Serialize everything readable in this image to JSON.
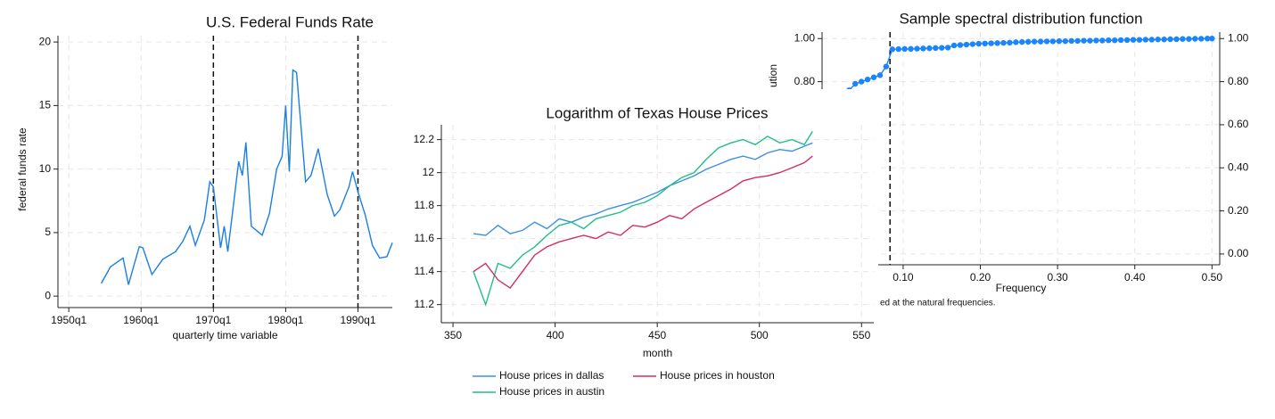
{
  "chart_data": [
    {
      "type": "line",
      "title": "U.S. Federal Funds Rate",
      "xlabel": "quarterly time variable",
      "ylabel": "federal funds rate",
      "x": [
        "1954q3",
        "1955q4",
        "1957q3",
        "1958q2",
        "1959q4",
        "1960q2",
        "1961q3",
        "1963q1",
        "1964q4",
        "1965q4",
        "1966q4",
        "1967q3",
        "1968q4",
        "1969q3",
        "1970q1",
        "1971q1",
        "1971q3",
        "1972q1",
        "1973q3",
        "1974q1",
        "1974q3",
        "1975q2",
        "1976q4",
        "1977q4",
        "1978q4",
        "1979q3",
        "1980q1",
        "1980q3",
        "1981q1",
        "1981q3",
        "1982q1",
        "1982q4",
        "1983q3",
        "1984q3",
        "1985q4",
        "1986q4",
        "1987q3",
        "1988q4",
        "1989q2",
        "1990q1",
        "1991q1",
        "1992q1",
        "1993q1",
        "1994q1",
        "1994q4"
      ],
      "series": [
        {
          "color": "#1a7fe0",
          "values": [
            1.0,
            2.3,
            3.0,
            0.9,
            3.9,
            3.8,
            1.7,
            2.9,
            3.5,
            4.3,
            5.5,
            4.0,
            6.0,
            9.0,
            8.6,
            3.8,
            5.5,
            3.5,
            10.6,
            9.5,
            12.1,
            5.5,
            4.8,
            6.5,
            10.0,
            11.0,
            15.0,
            9.8,
            17.8,
            17.6,
            14.2,
            9.0,
            9.5,
            11.6,
            8.0,
            6.3,
            6.8,
            8.6,
            9.8,
            8.2,
            6.4,
            4.0,
            3.0,
            3.1,
            4.2
          ]
        }
      ],
      "xlim": [
        "1948q3",
        "1994q4"
      ],
      "xticks": [
        "1950q1",
        "1960q1",
        "1970q1",
        "1980q1",
        "1990q1"
      ],
      "ylim": [
        -0.9,
        20.5
      ],
      "yticks": [
        0,
        5,
        10,
        15,
        20
      ],
      "grid": true,
      "xlines": [
        "1970q1",
        "1990q1"
      ]
    },
    {
      "type": "line",
      "title": "Logarithm of Texas House Prices",
      "xlabel": "month",
      "x": [
        360,
        366,
        372,
        378,
        384,
        390,
        396,
        402,
        408,
        414,
        420,
        426,
        432,
        438,
        444,
        450,
        456,
        462,
        468,
        474,
        480,
        486,
        492,
        498,
        504,
        510,
        516,
        522,
        526
      ],
      "series": [
        {
          "name": "House prices in dallas",
          "color": "#3d8fe6",
          "values": [
            11.63,
            11.62,
            11.68,
            11.63,
            11.65,
            11.7,
            11.66,
            11.72,
            11.7,
            11.73,
            11.75,
            11.78,
            11.8,
            11.82,
            11.85,
            11.88,
            11.92,
            11.95,
            11.98,
            12.02,
            12.05,
            12.08,
            12.1,
            12.08,
            12.12,
            12.14,
            12.13,
            12.16,
            12.18
          ]
        },
        {
          "name": "House prices in austin",
          "color": "#1fbf8a",
          "values": [
            11.4,
            11.2,
            11.45,
            11.42,
            11.5,
            11.55,
            11.62,
            11.68,
            11.7,
            11.66,
            11.72,
            11.74,
            11.76,
            11.8,
            11.82,
            11.86,
            11.92,
            11.97,
            12.0,
            12.08,
            12.15,
            12.18,
            12.2,
            12.17,
            12.22,
            12.18,
            12.2,
            12.17,
            12.25
          ]
        },
        {
          "name": "House prices in houston",
          "color": "#d42d5e",
          "values": [
            11.4,
            11.45,
            11.35,
            11.3,
            11.4,
            11.5,
            11.55,
            11.58,
            11.6,
            11.62,
            11.6,
            11.64,
            11.62,
            11.68,
            11.67,
            11.7,
            11.74,
            11.72,
            11.78,
            11.82,
            11.86,
            11.9,
            11.95,
            11.97,
            11.98,
            12.0,
            12.03,
            12.06,
            12.1
          ]
        }
      ],
      "xlim": [
        344.3,
        556
      ],
      "xticks": [
        350,
        400,
        450,
        500,
        550
      ],
      "ylim": [
        11.09,
        12.29
      ],
      "yticks": [
        11.2,
        11.4,
        11.6,
        11.8,
        12,
        12.2
      ],
      "grid": true,
      "legend": "bottom"
    },
    {
      "type": "line",
      "title": "Sample spectral distribution function",
      "xlabel": "Frequency",
      "ylabel": "ution",
      "note": "ed at the natural frequencies.",
      "x": [
        0.03,
        0.038,
        0.046,
        0.054,
        0.062,
        0.07,
        0.078,
        0.086,
        0.094,
        0.102,
        0.11,
        0.118,
        0.126,
        0.134,
        0.142,
        0.15,
        0.158,
        0.166,
        0.174,
        0.182,
        0.19,
        0.198,
        0.206,
        0.214,
        0.222,
        0.23,
        0.238,
        0.246,
        0.254,
        0.262,
        0.27,
        0.278,
        0.286,
        0.294,
        0.302,
        0.31,
        0.318,
        0.326,
        0.334,
        0.342,
        0.35,
        0.358,
        0.366,
        0.374,
        0.382,
        0.39,
        0.398,
        0.406,
        0.414,
        0.422,
        0.43,
        0.438,
        0.446,
        0.454,
        0.462,
        0.47,
        0.478,
        0.486,
        0.494,
        0.5
      ],
      "series": [
        {
          "color": "#1a85ff",
          "values": [
            0.76,
            0.79,
            0.8,
            0.81,
            0.82,
            0.83,
            0.87,
            0.95,
            0.951,
            0.952,
            0.952,
            0.953,
            0.954,
            0.955,
            0.956,
            0.957,
            0.958,
            0.968,
            0.97,
            0.972,
            0.974,
            0.976,
            0.977,
            0.978,
            0.979,
            0.98,
            0.981,
            0.983,
            0.984,
            0.985,
            0.986,
            0.986,
            0.987,
            0.987,
            0.988,
            0.988,
            0.989,
            0.989,
            0.99,
            0.99,
            0.991,
            0.991,
            0.992,
            0.992,
            0.993,
            0.993,
            0.994,
            0.994,
            0.995,
            0.995,
            0.996,
            0.996,
            0.997,
            0.997,
            0.998,
            0.998,
            0.999,
            0.999,
            1.0,
            1.0
          ]
        }
      ],
      "markers": true,
      "yaxis": "both",
      "xlim": [
        -0.005,
        0.51
      ],
      "xticks": [
        {
          "value": 0.1,
          "label": "0.10"
        },
        {
          "value": 0.2,
          "label": "0.20"
        },
        {
          "value": 0.3,
          "label": "0.30"
        },
        {
          "value": 0.4,
          "label": "0.40"
        },
        {
          "value": 0.5,
          "label": "0.50"
        }
      ],
      "ylim": [
        -0.05,
        1.03
      ],
      "yticks": [
        {
          "value": 0,
          "label": "0.00"
        },
        {
          "value": 0.2,
          "label": "0.20"
        },
        {
          "value": 0.4,
          "label": "0.40"
        },
        {
          "value": 0.6,
          "label": "0.60"
        },
        {
          "value": 0.8,
          "label": "0.80"
        },
        {
          "value": 1,
          "label": "1.00"
        }
      ],
      "grid": true,
      "xlines": [
        0.083
      ]
    }
  ]
}
